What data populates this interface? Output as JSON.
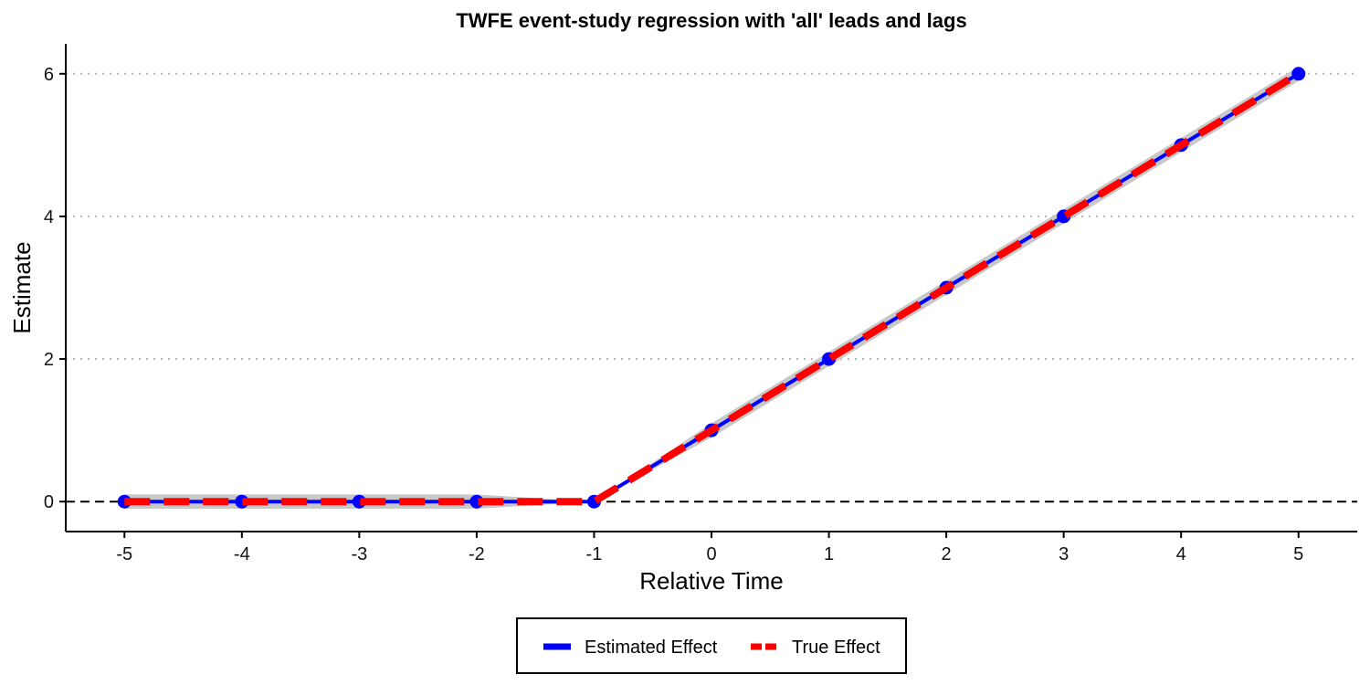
{
  "chart_data": {
    "type": "line",
    "title": "TWFE event-study regression with 'all' leads and lags",
    "xlabel": "Relative Time",
    "ylabel": "Estimate",
    "x": [
      -5,
      -4,
      -3,
      -2,
      -1,
      0,
      1,
      2,
      3,
      4,
      5
    ],
    "x_tick_labels": [
      "-5",
      "-4",
      "-3",
      "-2",
      "-1",
      "0",
      "1",
      "2",
      "3",
      "4",
      "5"
    ],
    "y_ticks": [
      0,
      2,
      4,
      6
    ],
    "y_tick_labels": [
      "0",
      "2",
      "4",
      "6"
    ],
    "xlim": [
      -5.5,
      5.5
    ],
    "ylim": [
      -0.42,
      6.42
    ],
    "grid": "horizontal dotted",
    "reference_line": {
      "y": 0,
      "style": "dashed"
    },
    "series": [
      {
        "name": "Estimated Effect",
        "color": "#0000ff",
        "style": "solid line with points",
        "values": [
          0,
          0,
          0,
          0,
          0,
          1,
          2,
          3,
          4,
          5,
          6
        ],
        "ci_lower": [
          -0.1,
          -0.1,
          -0.1,
          -0.1,
          0,
          0.9,
          1.9,
          2.9,
          3.9,
          4.9,
          5.9
        ],
        "ci_upper": [
          0.1,
          0.1,
          0.1,
          0.1,
          0,
          1.1,
          2.1,
          3.1,
          4.1,
          5.1,
          6.1
        ]
      },
      {
        "name": "True Effect",
        "color": "#ff0000",
        "style": "dashed line",
        "values": [
          0,
          0,
          0,
          0,
          0,
          1,
          2,
          3,
          4,
          5,
          6
        ]
      }
    ],
    "ci_color": "#c8c8c8",
    "legend_position": "bottom"
  }
}
